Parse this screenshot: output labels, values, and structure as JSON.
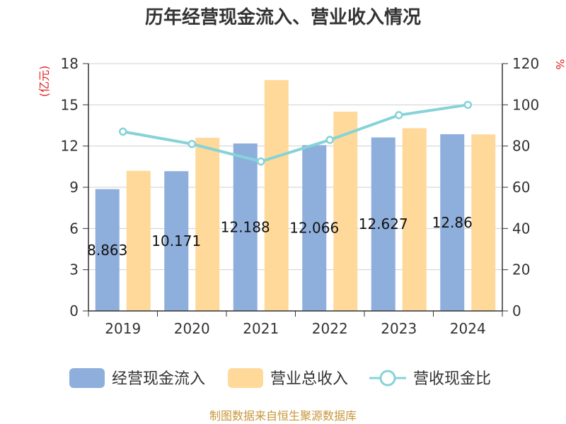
{
  "chart_data": {
    "type": "bar",
    "title": "历年经营现金流入、营业收入情况",
    "categories": [
      "2019",
      "2020",
      "2021",
      "2022",
      "2023",
      "2024"
    ],
    "series": [
      {
        "name": "经营现金流入",
        "type": "bar",
        "axis": "left",
        "color": "#8eaedb",
        "values": [
          8.863,
          10.171,
          12.188,
          12.066,
          12.627,
          12.86
        ],
        "labels": [
          "8.863",
          "10.171",
          "12.188",
          "12.066",
          "12.627",
          "12.86"
        ]
      },
      {
        "name": "营业总收入",
        "type": "bar",
        "axis": "left",
        "color": "#ffd99a",
        "values": [
          10.2,
          12.6,
          16.8,
          14.5,
          13.3,
          12.85
        ]
      },
      {
        "name": "营收现金比",
        "type": "line",
        "axis": "right",
        "color": "#86d3d8",
        "values": [
          87,
          81,
          72.5,
          83,
          95,
          100
        ]
      }
    ],
    "y_left": {
      "label": "(亿元)",
      "ylim": [
        0,
        18
      ],
      "ticks": [
        "0",
        "3",
        "6",
        "9",
        "12",
        "15",
        "18"
      ]
    },
    "y_right": {
      "label": "%",
      "ylim": [
        0,
        120
      ],
      "ticks": [
        "0",
        "20",
        "40",
        "60",
        "80",
        "100",
        "120"
      ]
    },
    "grid": true,
    "legend": "bottom"
  },
  "source": "制图数据来自恒生聚源数据库"
}
